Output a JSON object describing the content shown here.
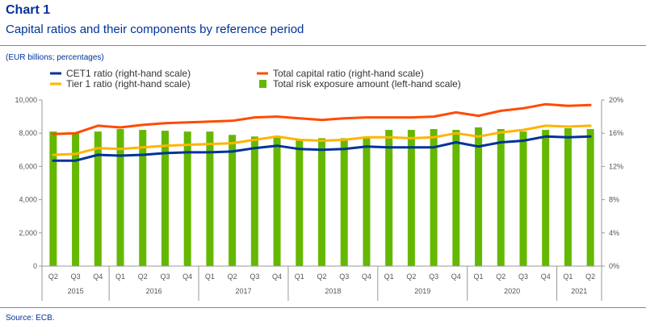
{
  "header": {
    "title": "Chart 1",
    "subtitle": "Capital ratios and their components by reference period"
  },
  "units_note": "(EUR billions; percentages)",
  "source": "Source: ECB.",
  "colors": {
    "cet1": "#003299",
    "tier1": "#ffb400",
    "total_capital": "#ff4b00",
    "rea": "#65b800",
    "text": "#003299",
    "axis": "#555555"
  },
  "chart_data": {
    "type": "bar",
    "categories": [
      "Q2",
      "Q3",
      "Q4",
      "Q1",
      "Q2",
      "Q3",
      "Q4",
      "Q1",
      "Q2",
      "Q3",
      "Q4",
      "Q1",
      "Q2",
      "Q3",
      "Q4",
      "Q1",
      "Q2",
      "Q3",
      "Q4",
      "Q1",
      "Q2",
      "Q3",
      "Q4",
      "Q1",
      "Q2"
    ],
    "years": [
      {
        "label": "2015",
        "start": 0,
        "count": 3
      },
      {
        "label": "2016",
        "start": 3,
        "count": 4
      },
      {
        "label": "2017",
        "start": 7,
        "count": 4
      },
      {
        "label": "2018",
        "start": 11,
        "count": 4
      },
      {
        "label": "2019",
        "start": 15,
        "count": 4
      },
      {
        "label": "2020",
        "start": 19,
        "count": 4
      },
      {
        "label": "2021",
        "start": 23,
        "count": 2
      }
    ],
    "bar_series": {
      "name": "Total risk exposure amount (left-hand scale)",
      "axis": "left",
      "values": [
        8100,
        8050,
        8100,
        8250,
        8200,
        8150,
        8100,
        8100,
        7900,
        7800,
        7850,
        7650,
        7700,
        7700,
        7750,
        8200,
        8200,
        8250,
        8200,
        8350,
        8250,
        8100,
        8200,
        8300,
        8250
      ]
    },
    "line_series": [
      {
        "name": "CET1  ratio (right-hand scale)",
        "axis": "right",
        "color_key": "cet1",
        "values": [
          12.7,
          12.7,
          13.4,
          13.3,
          13.4,
          13.6,
          13.7,
          13.7,
          13.8,
          14.2,
          14.5,
          14.1,
          14.0,
          14.1,
          14.4,
          14.3,
          14.3,
          14.3,
          14.9,
          14.4,
          14.9,
          15.1,
          15.6,
          15.5,
          15.6
        ]
      },
      {
        "name": "Tier 1 ratio (right-hand scale)",
        "axis": "right",
        "color_key": "tier1",
        "values": [
          13.4,
          13.5,
          14.2,
          14.1,
          14.3,
          14.5,
          14.6,
          14.7,
          14.8,
          15.2,
          15.6,
          15.2,
          15.1,
          15.2,
          15.5,
          15.5,
          15.4,
          15.5,
          16.0,
          15.6,
          16.1,
          16.4,
          16.9,
          16.8,
          16.9
        ]
      },
      {
        "name": "Total capital ratio (right-hand scale)",
        "axis": "right",
        "color_key": "total_capital",
        "values": [
          15.9,
          16.0,
          16.9,
          16.7,
          17.0,
          17.2,
          17.3,
          17.4,
          17.5,
          17.9,
          18.0,
          17.8,
          17.6,
          17.8,
          17.9,
          17.9,
          17.9,
          18.0,
          18.5,
          18.1,
          18.7,
          19.0,
          19.5,
          19.3,
          19.4
        ]
      }
    ],
    "legend_order": [
      "cet1",
      "total_capital",
      "tier1",
      "rea"
    ],
    "legend_placement": "top",
    "y_left": {
      "min": 0,
      "max": 10000,
      "ticks": [
        0,
        2000,
        4000,
        6000,
        8000,
        10000
      ],
      "tick_labels": [
        "0",
        "2,000",
        "4,000",
        "6,000",
        "8,000",
        "10,000"
      ]
    },
    "y_right": {
      "min": 0,
      "max": 20,
      "ticks": [
        0,
        4,
        8,
        12,
        16,
        20
      ],
      "tick_labels": [
        "0%",
        "4%",
        "8%",
        "12%",
        "16%",
        "20%"
      ]
    },
    "grid": false
  }
}
